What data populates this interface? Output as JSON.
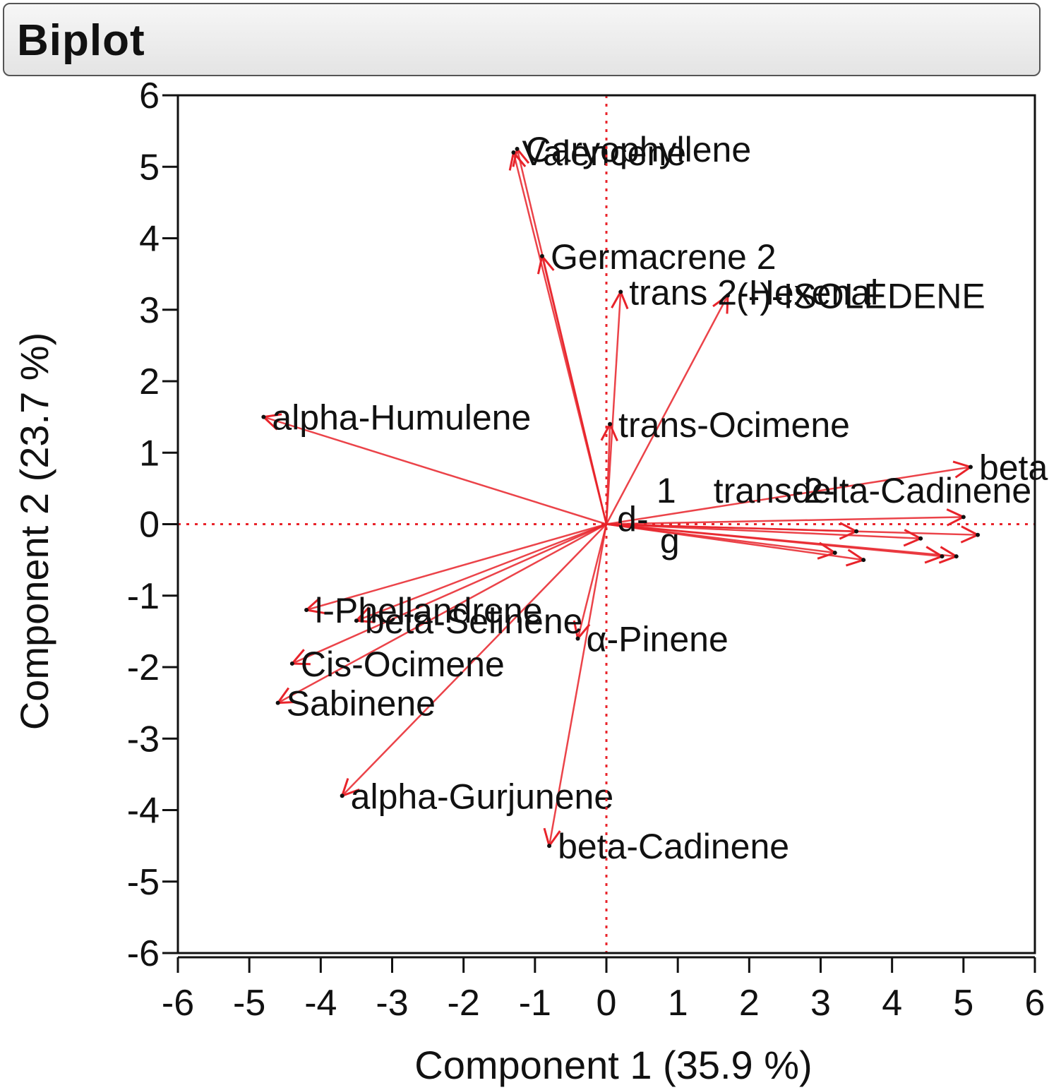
{
  "header": {
    "title": "Biplot"
  },
  "chart_data": {
    "type": "scatter",
    "subtype": "biplot",
    "xlabel": "Component 1  (35.9 %)",
    "ylabel": "Component 2  (23.7 %)",
    "xlim": [
      -6,
      6
    ],
    "ylim": [
      -6,
      6
    ],
    "xticks": [
      -6,
      -5,
      -4,
      -3,
      -2,
      -1,
      0,
      1,
      2,
      3,
      4,
      5,
      6
    ],
    "yticks": [
      -6,
      -5,
      -4,
      -3,
      -2,
      -1,
      0,
      1,
      2,
      3,
      4,
      5,
      6
    ],
    "reference_lines": {
      "x": 0,
      "y": 0,
      "style": "dotted"
    },
    "vector_color": "#e8232a",
    "vectors": [
      {
        "name": "Valencene",
        "x": -1.3,
        "y": 5.2
      },
      {
        "name": "Caryophyllene",
        "x": -1.25,
        "y": 5.25
      },
      {
        "name": "Germacrene 2",
        "x": -0.9,
        "y": 3.75
      },
      {
        "name": "(-)-ISOLEDENE",
        "x": 1.7,
        "y": 3.2
      },
      {
        "name": "trans 2-Hexenal",
        "x": 0.2,
        "y": 3.25
      },
      {
        "name": "alpha-Humulene",
        "x": -4.8,
        "y": 1.5
      },
      {
        "name": "trans-Ocimene",
        "x": 0.05,
        "y": 1.4
      },
      {
        "name": "beta-Phellandrene",
        "x": 5.1,
        "y": 0.8
      },
      {
        "name": "",
        "x": 5.0,
        "y": 0.1
      },
      {
        "name": "",
        "x": 5.2,
        "y": -0.15
      },
      {
        "name": "",
        "x": 4.9,
        "y": -0.45
      },
      {
        "name": "",
        "x": 4.7,
        "y": -0.45
      },
      {
        "name": "",
        "x": 3.6,
        "y": -0.5
      },
      {
        "name": "",
        "x": 3.2,
        "y": -0.4
      },
      {
        "name": "",
        "x": 3.5,
        "y": -0.1
      },
      {
        "name": "",
        "x": 4.4,
        "y": -0.2
      },
      {
        "name": "l-Phellandrene",
        "x": -4.2,
        "y": -1.2
      },
      {
        "name": "beta-Selinene",
        "x": -3.5,
        "y": -1.35
      },
      {
        "name": "α-Pinene",
        "x": -0.4,
        "y": -1.6
      },
      {
        "name": "Cis-Ocimene",
        "x": -4.4,
        "y": -1.95
      },
      {
        "name": "Sabinene",
        "x": -4.6,
        "y": -2.5
      },
      {
        "name": "alpha-Gurjunene",
        "x": -3.7,
        "y": -3.8
      },
      {
        "name": "beta-Cadinene",
        "x": -0.8,
        "y": -4.5
      }
    ],
    "cluster_labels": [
      {
        "text": "1",
        "x": 0.7,
        "y": 0.3
      },
      {
        "text": "trans-2-",
        "x": 1.5,
        "y": 0.3
      },
      {
        "text": "delta-Cadinene",
        "x": 2.6,
        "y": 0.3
      },
      {
        "text": "d-",
        "x": 0.15,
        "y": -0.1
      },
      {
        "text": "g",
        "x": 0.75,
        "y": -0.4
      }
    ]
  }
}
